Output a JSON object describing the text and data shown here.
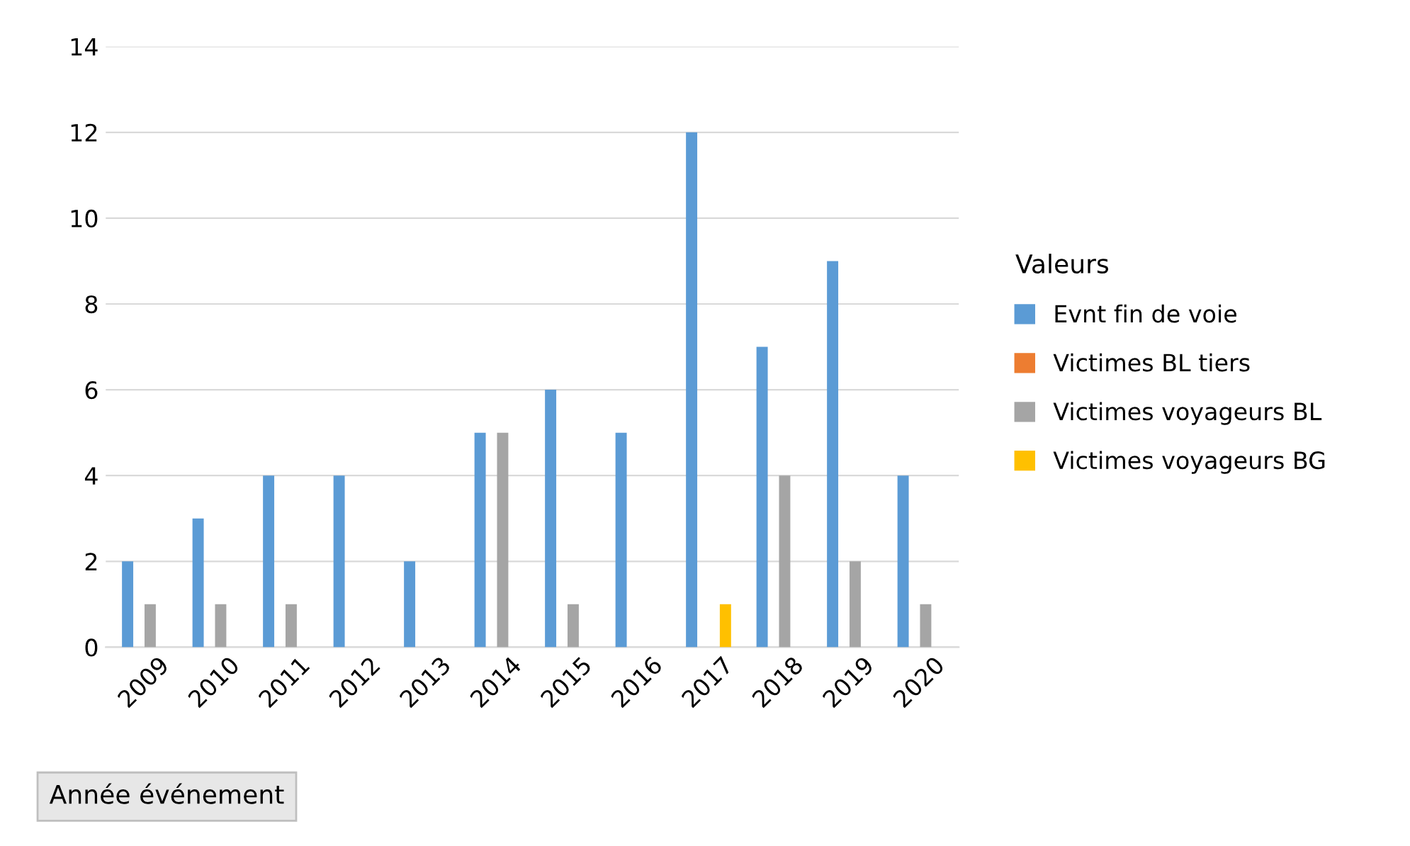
{
  "chart_data": {
    "type": "bar",
    "categories": [
      "2009",
      "2010",
      "2011",
      "2012",
      "2013",
      "2014",
      "2015",
      "2016",
      "2017",
      "2018",
      "2019",
      "2020"
    ],
    "series": [
      {
        "name": "Evnt fin de voie",
        "color": "#5b9bd5",
        "values": [
          2,
          3,
          4,
          4,
          2,
          5,
          6,
          5,
          12,
          7,
          9,
          4
        ]
      },
      {
        "name": "Victimes BL tiers",
        "color": "#ed7d31",
        "values": [
          null,
          null,
          null,
          null,
          null,
          null,
          null,
          null,
          null,
          null,
          null,
          null
        ]
      },
      {
        "name": "Victimes voyageurs BL",
        "color": "#a5a5a5",
        "values": [
          1,
          1,
          1,
          null,
          null,
          5,
          1,
          null,
          null,
          4,
          2,
          1
        ]
      },
      {
        "name": "Victimes voyageurs BG",
        "color": "#ffc000",
        "values": [
          null,
          null,
          null,
          null,
          null,
          null,
          null,
          null,
          1,
          null,
          null,
          null
        ]
      }
    ],
    "ylim": [
      0,
      14
    ],
    "yticks": [
      0,
      2,
      4,
      6,
      8,
      10,
      12,
      14
    ],
    "grid": "y",
    "legend": "right",
    "legend_title": "Valeurs",
    "xlabel": "Année événement"
  }
}
